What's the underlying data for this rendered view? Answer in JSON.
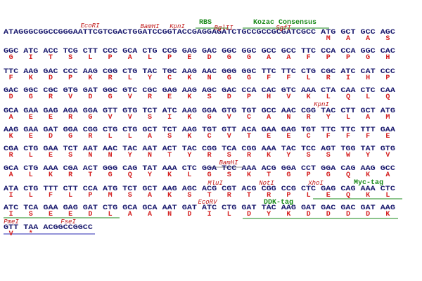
{
  "rows": [
    {
      "dna": "ATAGGGCGGCCGGGAATTCGTCGACTGGATCCGGTACCGAGGAGATCTGCCGCCGCGATCGCC ATG GCT GCC AGC",
      "aa": [
        "M",
        "A",
        "A",
        "S"
      ],
      "labels": [
        "EcoRI",
        "BamHI",
        "KpnI",
        "RBS",
        "BglII",
        "Kozac Consensus",
        "SgfI"
      ]
    },
    {
      "dna": "GGC ATC ACC TCG CTT CCC GCA CTG CCG GAG GAC GGC GGC GCC GCC TTC CCA CCA GGC CAC",
      "aa": [
        "G",
        "I",
        "T",
        "S",
        "L",
        "P",
        "A",
        "L",
        "P",
        "E",
        "D",
        "G",
        "G",
        "A",
        "A",
        "F",
        "P",
        "P",
        "G",
        "H"
      ],
      "labels": []
    },
    {
      "dna": "TTC AAG GAC CCC AAG CGG CTG TAC TGC AAG AAC GGG GGC TTC TTC CTG CGC ATC CAT CCC",
      "aa": [
        "F",
        "K",
        "D",
        "P",
        "K",
        "R",
        "L",
        "Y",
        "C",
        "K",
        "N",
        "G",
        "G",
        "F",
        "F",
        "L",
        "R",
        "I",
        "H",
        "P"
      ],
      "labels": []
    },
    {
      "dna": "GAC GGC CGC GTG GAT GGC GTC CGC GAG AAG AGC GAC CCA CAC GTC AAA CTA CAA CTC CAA",
      "aa": [
        "D",
        "G",
        "R",
        "V",
        "D",
        "G",
        "V",
        "R",
        "E",
        "K",
        "S",
        "D",
        "P",
        "H",
        "V",
        "K",
        "L",
        "Q",
        "L",
        "Q"
      ],
      "labels": []
    },
    {
      "dna": "GCA GAA GAG AGA GGA GTT GTG TCT ATC AAG GGA GTG TGT GCC AAC CGG TAC CTT GCT ATG",
      "aa": [
        "A",
        "E",
        "E",
        "R",
        "G",
        "V",
        "V",
        "S",
        "I",
        "K",
        "G",
        "V",
        "C",
        "A",
        "N",
        "R",
        "Y",
        "L",
        "A",
        "M"
      ],
      "labels": [
        "KpnI"
      ]
    },
    {
      "dna": "AAG GAA GAT GGA CGG CTG CTG GCT TCT AAG TGT GTT ACA GAA GAG TGT TTC TTC TTT GAA",
      "aa": [
        "K",
        "E",
        "D",
        "G",
        "R",
        "L",
        "L",
        "A",
        "S",
        "K",
        "C",
        "V",
        "T",
        "E",
        "E",
        "C",
        "F",
        "F",
        "F",
        "E"
      ],
      "labels": []
    },
    {
      "dna": "CGA CTG GAA TCT AAT AAC TAC AAT ACT TAC CGG TCA CGG AAA TAC TCC AGT TGG TAT GTG",
      "aa": [
        "R",
        "L",
        "E",
        "S",
        "N",
        "N",
        "Y",
        "N",
        "T",
        "Y",
        "R",
        "S",
        "R",
        "K",
        "Y",
        "S",
        "S",
        "W",
        "Y",
        "V"
      ],
      "labels": []
    },
    {
      "dna": "GCA CTG AAA CGA ACT GGG CAG TAT AAA CTC GGA TCC AAA ACG GGA CCT GGA CAG AAG GCC",
      "aa": [
        "A",
        "L",
        "K",
        "R",
        "T",
        "G",
        "Q",
        "Y",
        "K",
        "L",
        "G",
        "S",
        "K",
        "T",
        "G",
        "P",
        "G",
        "Q",
        "K",
        "A"
      ],
      "labels": [
        "BamHI"
      ]
    },
    {
      "dna": "ATA CTG TTT CTT CCA ATG TCT GCT AAG AGC ACG CGT ACG CGG CCG CTC GAG CAG AAA CTC",
      "aa": [
        "I",
        "L",
        "F",
        "L",
        "P",
        "M",
        "S",
        "A",
        "K",
        "S",
        "T",
        "R",
        "T",
        "R",
        "P",
        "L",
        "E",
        "Q",
        "K",
        "L"
      ],
      "labels": [
        "MluI",
        "NotI",
        "XhoI",
        "Myc-tag"
      ]
    },
    {
      "dna": "ATC TCA GAA GAG GAT CTG GCA GCA AAT GAT ATC CTG GAT TAC AAG GAT GAC GAC GAT AAG",
      "aa": [
        "I",
        "S",
        "E",
        "E",
        "D",
        "L",
        "A",
        "A",
        "N",
        "D",
        "I",
        "L",
        "D",
        "Y",
        "K",
        "D",
        "D",
        "D",
        "D",
        "K"
      ],
      "labels": [
        "EcoRV",
        "DDK-tag"
      ]
    },
    {
      "dna": "GTT TAA ACGGCCGGCC",
      "aa": [
        "V",
        "*"
      ],
      "labels": [
        "PmeI",
        "FseI"
      ]
    }
  ]
}
